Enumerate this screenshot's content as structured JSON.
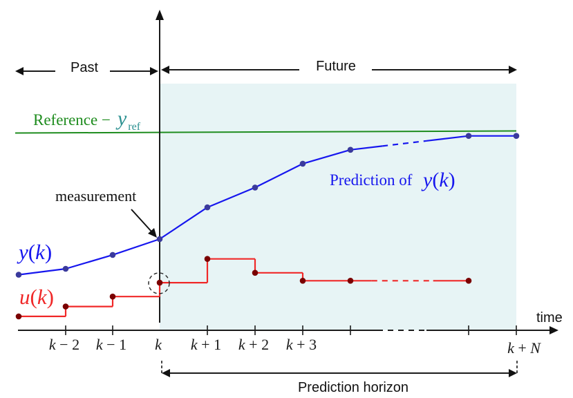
{
  "figure": {
    "past_label": "Past",
    "future_label": "Future",
    "time_label": "time",
    "horizon_label": "Prediction horizon",
    "measurement_label": "measurement",
    "prediction_prefix": "Prediction of",
    "prediction_symbol": "y(k)",
    "output_label": "y(k)",
    "input_label": "u(k)",
    "reference": {
      "label": "Reference −",
      "symbol": "y",
      "subscript": "ref"
    }
  },
  "colors": {
    "output_line": "#1616ee",
    "output_marker": "#3a3a9c",
    "input_line": "#f02828",
    "input_marker": "#7a0000",
    "reference": "#1e8c1e",
    "reference_symbol": "#2a9090",
    "future_region": "#e7f4f5",
    "axis": "#1a1a1a",
    "text": "#111111"
  },
  "chart_data": {
    "type": "line",
    "title": "",
    "xlabel": "time",
    "ylabel": "",
    "x": [
      "",
      "k − 2",
      "k − 1",
      "k",
      "k + 1",
      "k + 2",
      "k + 3",
      "",
      "",
      "k + N"
    ],
    "series": [
      {
        "name": "y(k)",
        "kind": "line",
        "values": [
          0.28,
          0.31,
          0.38,
          0.46,
          0.62,
          0.72,
          0.84,
          0.91,
          0.98,
          0.98
        ]
      },
      {
        "name": "u(k)",
        "kind": "step",
        "values": [
          0.07,
          0.12,
          0.17,
          0.24,
          0.36,
          0.29,
          0.25,
          0.25,
          0.25,
          null
        ]
      }
    ],
    "reference_line": {
      "label": "Reference − y_ref",
      "value": 1.0
    },
    "regions": [
      {
        "label": "Past",
        "from_index": 0,
        "to_index": 3,
        "shaded": false
      },
      {
        "label": "Future",
        "from_index": 3,
        "to_index": 9,
        "shaded": true
      }
    ],
    "horizon": {
      "label": "Prediction horizon",
      "from": "k",
      "to": "k + N"
    },
    "annotations": [
      {
        "text": "measurement",
        "points_to": "y(k) at k"
      },
      {
        "text": "Prediction of y(k)",
        "region": "Future"
      }
    ],
    "ellipsis_between_indices": [
      7,
      8
    ],
    "ylim": [
      0,
      1.05
    ],
    "grid": false,
    "legend": "inline labels"
  }
}
